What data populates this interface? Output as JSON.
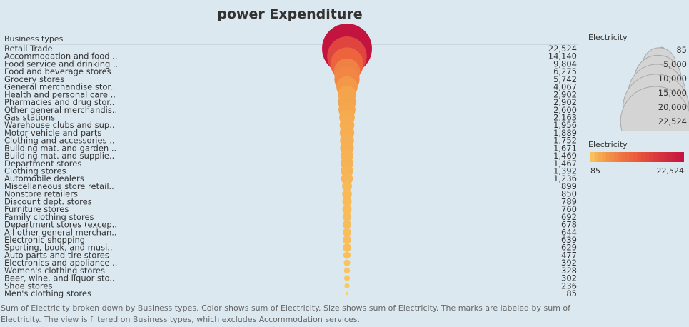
{
  "title": "power Expenditure",
  "caption": "Sum of Electricity broken down by Business types.  Color shows sum of Electricity.  Size shows sum of Electricity.  The marks are labeled by sum of Electricity. The view is filtered on Business types, which excludes Accommodation services.",
  "chart_data": {
    "type": "scatter",
    "title": "power Expenditure",
    "row_header": "Business types",
    "measure": "Electricity",
    "categories": [
      "Retail Trade",
      "Accommodation and food ..",
      "Food service and drinking ..",
      "Food and beverage stores",
      "Grocery stores",
      "General merchandise stor..",
      "Health and personal care ..",
      "Pharmacies and drug stor..",
      "Other general merchandis..",
      "Gas stations",
      "Warehouse clubs and sup..",
      "Motor vehicle and parts",
      "Clothing and accessories ..",
      "Building mat. and garden ..",
      "Building mat. and supplie..",
      "Department stores",
      "Clothing stores",
      "Automobile dealers",
      "Miscellaneous store retail..",
      "Nonstore retailers",
      "Discount dept. stores",
      "Furniture stores",
      "Family clothing stores",
      "Department stores (excep..",
      "All other general merchan..",
      "Electronic shopping",
      "Sporting, book, and musi..",
      "Auto parts and tire stores",
      "Electronics and appliance ..",
      "Women's clothing stores",
      "Beer, wine, and liquor sto..",
      "Shoe stores",
      "Men's clothing stores"
    ],
    "values": [
      22524,
      14140,
      9804,
      6275,
      5742,
      4067,
      2902,
      2902,
      2600,
      2163,
      1956,
      1889,
      1752,
      1671,
      1469,
      1467,
      1392,
      1236,
      899,
      850,
      789,
      760,
      692,
      678,
      644,
      639,
      629,
      477,
      392,
      328,
      302,
      236,
      85
    ],
    "value_labels": [
      "22,524",
      "14,140",
      "9,804",
      "6,275",
      "5,742",
      "4,067",
      "2,902",
      "2,902",
      "2,600",
      "2,163",
      "1,956",
      "1,889",
      "1,752",
      "1,671",
      "1,469",
      "1,467",
      "1,392",
      "1,236",
      "899",
      "850",
      "789",
      "760",
      "692",
      "678",
      "644",
      "639",
      "629",
      "477",
      "392",
      "328",
      "302",
      "236",
      "85"
    ],
    "size_legend": {
      "title": "Electricity",
      "values": [
        85,
        5000,
        10000,
        15000,
        20000,
        22524
      ],
      "labels": [
        "85",
        "5,000",
        "10,000",
        "15,000",
        "20,000",
        "22,524"
      ]
    },
    "color_legend": {
      "title": "Electricity",
      "min": 85,
      "max": 22524,
      "min_label": "85",
      "max_label": "22,524",
      "colors": [
        "#fbd067",
        "#f4a24a",
        "#ec5c3d",
        "#c3143f"
      ]
    },
    "grid": false
  }
}
